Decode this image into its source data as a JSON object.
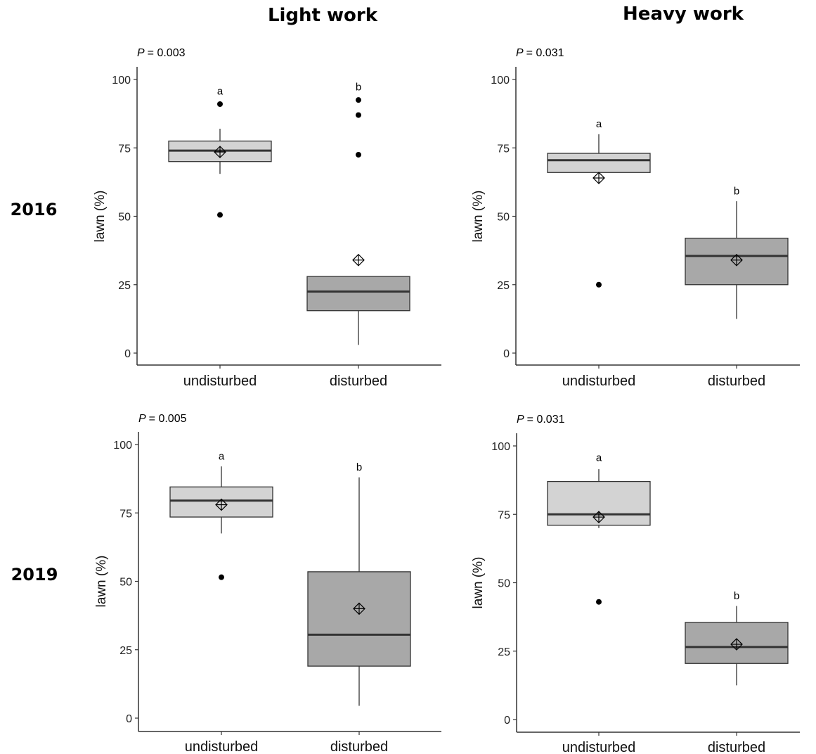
{
  "column_titles": [
    "Light work",
    "Heavy work"
  ],
  "row_labels": [
    "2016",
    "2019"
  ],
  "chart_data": [
    {
      "type": "boxplot",
      "p_label": "P",
      "p_value": "= 0.003",
      "ylabel": "lawn (%)",
      "ylim": [
        0,
        100
      ],
      "yticks": [
        "0",
        "25",
        "50",
        "75",
        "100"
      ],
      "categories": [
        "undisturbed",
        "disturbed"
      ],
      "boxes": [
        {
          "category": "undisturbed",
          "color": "#d3d3d3",
          "min": 65.5,
          "q1": 70,
          "median": 74,
          "q3": 77.5,
          "max": 82,
          "mean": 73.5,
          "outliers": [
            91,
            50.5
          ],
          "letter": "a",
          "letter_y": 94.5
        },
        {
          "category": "disturbed",
          "color": "#a8a8a8",
          "min": 3,
          "q1": 15.5,
          "median": 22.5,
          "q3": 28,
          "max": 28,
          "mean": 34,
          "outliers": [
            92.5,
            87,
            72.5
          ],
          "letter": "b",
          "letter_y": 96
        }
      ]
    },
    {
      "type": "boxplot",
      "p_label": "P",
      "p_value": "= 0.031",
      "ylabel": "lawn (%)",
      "ylim": [
        0,
        100
      ],
      "yticks": [
        "0",
        "25",
        "50",
        "75",
        "100"
      ],
      "categories": [
        "undisturbed",
        "disturbed"
      ],
      "boxes": [
        {
          "category": "undisturbed",
          "color": "#d3d3d3",
          "min": 66,
          "q1": 66,
          "median": 70.5,
          "q3": 73,
          "max": 80,
          "mean": 64,
          "outliers": [
            25
          ],
          "letter": "a",
          "letter_y": 82.5
        },
        {
          "category": "disturbed",
          "color": "#a8a8a8",
          "min": 12.5,
          "q1": 25,
          "median": 35.5,
          "q3": 42,
          "max": 55.5,
          "mean": 34,
          "outliers": [],
          "letter": "b",
          "letter_y": 58
        }
      ]
    },
    {
      "type": "boxplot",
      "p_label": "P",
      "p_value": "= 0.005",
      "ylabel": "lawn (%)",
      "ylim": [
        0,
        100
      ],
      "yticks": [
        "0",
        "25",
        "50",
        "75",
        "100"
      ],
      "categories": [
        "undisturbed",
        "disturbed"
      ],
      "boxes": [
        {
          "category": "undisturbed",
          "color": "#d3d3d3",
          "min": 67.5,
          "q1": 73.5,
          "median": 79.5,
          "q3": 84.5,
          "max": 92,
          "mean": 78,
          "outliers": [
            51.5
          ],
          "letter": "a",
          "letter_y": 94.5
        },
        {
          "category": "disturbed",
          "color": "#a8a8a8",
          "min": 4.5,
          "q1": 19,
          "median": 30.5,
          "q3": 53.5,
          "max": 88,
          "mean": 40,
          "outliers": [],
          "letter": "b",
          "letter_y": 90.5
        }
      ]
    },
    {
      "type": "boxplot",
      "p_label": "P",
      "p_value": "= 0.031",
      "ylabel": "lawn (%)",
      "ylim": [
        0,
        100
      ],
      "yticks": [
        "0",
        "25",
        "50",
        "75",
        "100"
      ],
      "categories": [
        "undisturbed",
        "disturbed"
      ],
      "boxes": [
        {
          "category": "undisturbed",
          "color": "#d3d3d3",
          "min": 70,
          "q1": 71,
          "median": 75,
          "q3": 87,
          "max": 91.5,
          "mean": 74,
          "outliers": [
            43
          ],
          "letter": "a",
          "letter_y": 94.5
        },
        {
          "category": "disturbed",
          "color": "#a8a8a8",
          "min": 12.5,
          "q1": 20.5,
          "median": 26.5,
          "q3": 35.5,
          "max": 41.5,
          "mean": 27.5,
          "outliers": [],
          "letter": "b",
          "letter_y": 44
        }
      ]
    }
  ]
}
